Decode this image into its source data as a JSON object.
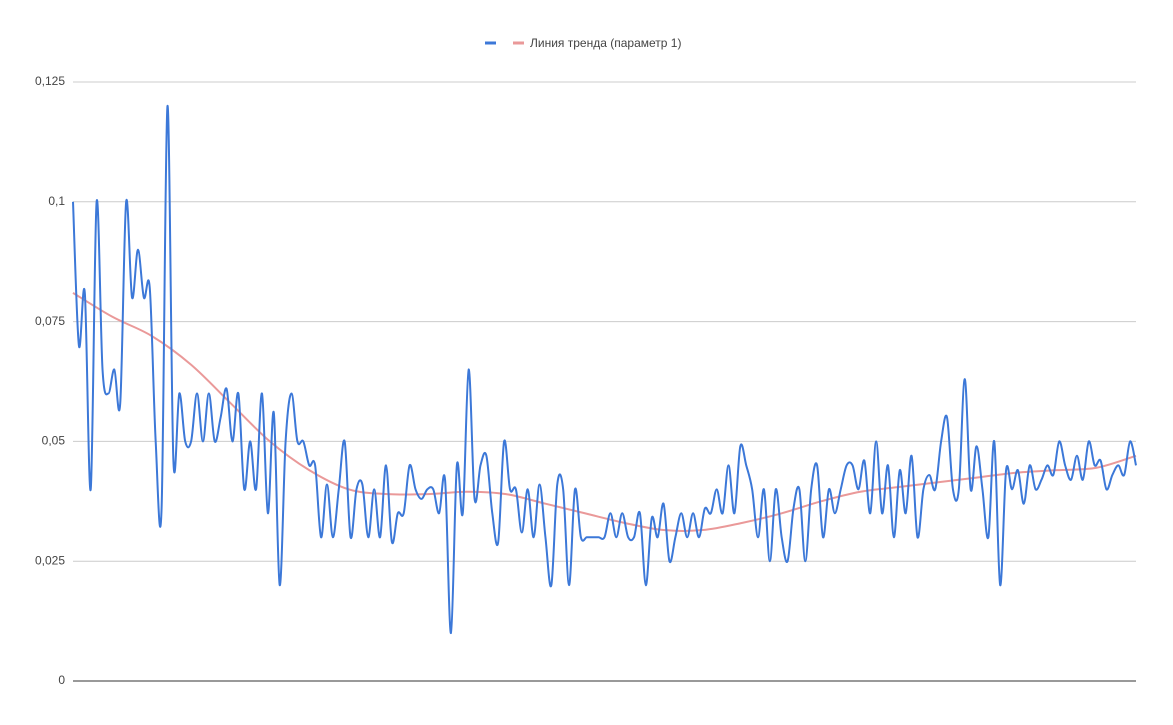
{
  "chart_data": {
    "type": "line",
    "ylim": [
      0,
      0.125
    ],
    "yticks": [
      0,
      {
        "value": 0.025,
        "label": "0,025"
      },
      {
        "value": 0.05,
        "label": "0,05"
      },
      {
        "value": 0.075,
        "label": "0,075"
      },
      {
        "value": 0.1,
        "label": "0,1"
      },
      {
        "value": 0.125,
        "label": "0,125"
      }
    ],
    "grid": true,
    "legend": "top",
    "series": [
      {
        "color": "#3c78d8",
        "values": [
          0.1,
          0.07,
          0.081,
          0.04,
          0.1,
          0.065,
          0.06,
          0.065,
          0.058,
          0.1,
          0.08,
          0.09,
          0.08,
          0.082,
          0.05,
          0.036,
          0.12,
          0.046,
          0.06,
          0.05,
          0.05,
          0.06,
          0.05,
          0.06,
          0.05,
          0.055,
          0.061,
          0.05,
          0.06,
          0.04,
          0.05,
          0.04,
          0.06,
          0.035,
          0.056,
          0.02,
          0.05,
          0.06,
          0.05,
          0.05,
          0.045,
          0.045,
          0.03,
          0.041,
          0.03,
          0.04,
          0.05,
          0.03,
          0.04,
          0.041,
          0.03,
          0.04,
          0.03,
          0.045,
          0.029,
          0.035,
          0.035,
          0.045,
          0.04,
          0.038,
          0.04,
          0.04,
          0.035,
          0.042,
          0.01,
          0.045,
          0.035,
          0.065,
          0.038,
          0.045,
          0.047,
          0.035,
          0.029,
          0.05,
          0.04,
          0.04,
          0.031,
          0.04,
          0.03,
          0.041,
          0.03,
          0.02,
          0.041,
          0.04,
          0.02,
          0.04,
          0.03,
          0.03,
          0.03,
          0.03,
          0.03,
          0.035,
          0.03,
          0.035,
          0.03,
          0.03,
          0.035,
          0.02,
          0.034,
          0.03,
          0.037,
          0.025,
          0.03,
          0.035,
          0.03,
          0.035,
          0.03,
          0.036,
          0.035,
          0.04,
          0.035,
          0.045,
          0.035,
          0.049,
          0.045,
          0.04,
          0.03,
          0.04,
          0.025,
          0.04,
          0.03,
          0.025,
          0.036,
          0.04,
          0.025,
          0.04,
          0.045,
          0.03,
          0.04,
          0.035,
          0.04,
          0.045,
          0.045,
          0.04,
          0.046,
          0.035,
          0.05,
          0.035,
          0.045,
          0.03,
          0.044,
          0.035,
          0.047,
          0.03,
          0.04,
          0.043,
          0.04,
          0.05,
          0.055,
          0.04,
          0.04,
          0.063,
          0.04,
          0.049,
          0.04,
          0.03,
          0.05,
          0.02,
          0.044,
          0.04,
          0.044,
          0.037,
          0.045,
          0.04,
          0.042,
          0.045,
          0.043,
          0.05,
          0.045,
          0.042,
          0.047,
          0.042,
          0.05,
          0.045,
          0.046,
          0.04,
          0.043,
          0.045,
          0.043,
          0.05,
          0.045
        ]
      },
      {
        "name": "Линия тренда (параметр 1)",
        "color": "#ea9999",
        "values": [
          0.081,
          0.076,
          0.072,
          0.066,
          0.058,
          0.05,
          0.044,
          0.04,
          0.039,
          0.039,
          0.0395,
          0.039,
          0.037,
          0.035,
          0.033,
          0.0315,
          0.0315,
          0.033,
          0.035,
          0.0375,
          0.0395,
          0.0405,
          0.0415,
          0.0425,
          0.0435,
          0.044,
          0.0445,
          0.047
        ]
      }
    ]
  }
}
